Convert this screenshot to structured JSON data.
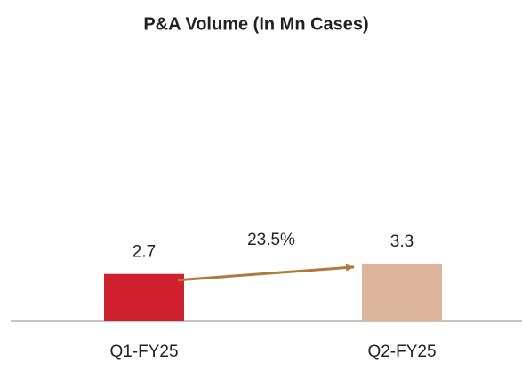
{
  "chart_data": {
    "type": "bar",
    "title": "P&A Volume (In Mn Cases)",
    "categories": [
      "Q1-FY25",
      "Q2-FY25"
    ],
    "values": [
      2.7,
      3.3
    ],
    "colors": [
      "#d0202e",
      "#dcb49b"
    ],
    "annotation": "23.5%",
    "annotation_color": "#b07a3c",
    "ylim": [
      0,
      15
    ]
  }
}
